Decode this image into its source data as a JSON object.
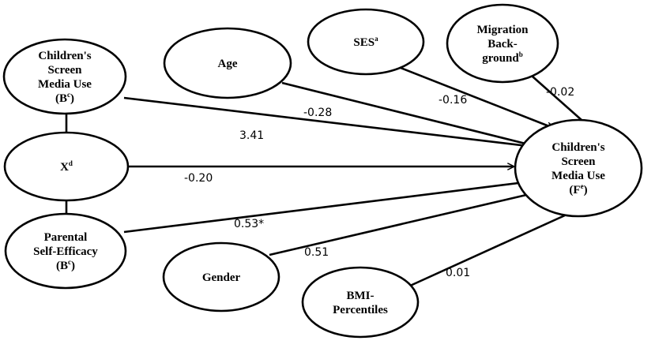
{
  "nodes": {
    "screen_b": {
      "lines": [
        {
          "text": "Children's"
        },
        {
          "text": "Screen"
        },
        {
          "text": "Media Use"
        },
        {
          "text": "(B",
          "sup": "c",
          "tail": ")"
        }
      ]
    },
    "x": {
      "lines": [
        {
          "text": "X",
          "sup": "d"
        }
      ]
    },
    "pse": {
      "lines": [
        {
          "text": "Parental"
        },
        {
          "text": "Self-Efficacy"
        },
        {
          "text": "(B",
          "sup": "c",
          "tail": ")"
        }
      ]
    },
    "age": {
      "lines": [
        {
          "text": "Age"
        }
      ]
    },
    "ses": {
      "lines": [
        {
          "text": "SES",
          "sup": "a"
        }
      ]
    },
    "migration": {
      "lines": [
        {
          "text": "Migration"
        },
        {
          "text": "Back-"
        },
        {
          "text": "ground",
          "sup": "b"
        }
      ]
    },
    "gender": {
      "lines": [
        {
          "text": "Gender"
        }
      ]
    },
    "bmi": {
      "lines": [
        {
          "text": "BMI-"
        },
        {
          "text": "Percentiles"
        }
      ]
    },
    "screen_f": {
      "lines": [
        {
          "text": "Children's"
        },
        {
          "text": "Screen"
        },
        {
          "text": "Media Use"
        },
        {
          "text": "(F",
          "sup": "e",
          "tail": ")"
        }
      ]
    }
  },
  "paths": [
    {
      "from": "screen_b",
      "to": "screen_f",
      "coef": "3.41"
    },
    {
      "from": "x",
      "to": "screen_f",
      "coef": "-0.20"
    },
    {
      "from": "pse",
      "to": "screen_f",
      "coef": "0.53*"
    },
    {
      "from": "age",
      "to": "screen_f",
      "coef": "-0.28"
    },
    {
      "from": "ses",
      "to": "screen_f",
      "coef": "-0.16"
    },
    {
      "from": "migration",
      "to": "screen_f",
      "coef": "-0.02"
    },
    {
      "from": "gender",
      "to": "screen_f",
      "coef": "0.51"
    },
    {
      "from": "bmi",
      "to": "screen_f",
      "coef": "0.01"
    }
  ],
  "associations": [
    {
      "from": "screen_b",
      "to": "x"
    },
    {
      "from": "x",
      "to": "pse"
    }
  ]
}
